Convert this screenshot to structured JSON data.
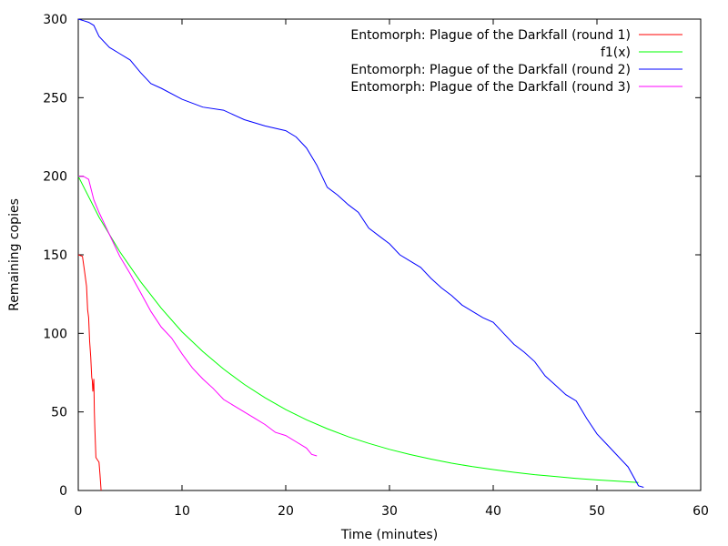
{
  "chart_data": {
    "type": "line",
    "title": "",
    "xlabel": "Time (minutes)",
    "ylabel": "Remaining copies",
    "xlim": [
      0,
      60
    ],
    "ylim": [
      0,
      300
    ],
    "xticks": [
      0,
      10,
      20,
      30,
      40,
      50,
      60
    ],
    "xtick_labels": [
      "0",
      "10",
      "20",
      "30",
      "40",
      "50",
      "60"
    ],
    "yticks": [
      0,
      50,
      100,
      150,
      200,
      250,
      300
    ],
    "ytick_labels": [
      "0",
      "50",
      "100",
      "150",
      "200",
      "250",
      "300"
    ],
    "grid": false,
    "legend_position": "top-right",
    "series": [
      {
        "name": "Entomorph: Plague of the Darkfall (round 1)",
        "color": "#ff0000",
        "x": [
          0,
          0.4,
          0.6,
          0.8,
          0.9,
          1.0,
          1.1,
          1.2,
          1.3,
          1.35,
          1.4,
          1.5,
          1.55,
          1.6,
          1.7,
          1.8,
          2.0,
          2.1,
          2.2
        ],
        "y": [
          150,
          149,
          140,
          130,
          115,
          110,
          95,
          85,
          72,
          70,
          63,
          71,
          50,
          40,
          21,
          20,
          18,
          10,
          0
        ]
      },
      {
        "name": "f1(x)",
        "color": "#00ff00",
        "x": [
          0,
          2,
          4,
          6,
          8,
          10,
          12,
          14,
          16,
          18,
          20,
          22,
          24,
          26,
          28,
          30,
          32,
          34,
          36,
          38,
          40,
          42,
          44,
          46,
          48,
          50,
          52,
          54
        ],
        "y": [
          200,
          174,
          152,
          133,
          116,
          101,
          88.5,
          77.3,
          67.5,
          59,
          51.5,
          45,
          39.3,
          34.3,
          30,
          26.2,
          22.9,
          20,
          17.4,
          15.2,
          13.3,
          11.6,
          10.1,
          8.9,
          7.7,
          6.7,
          5.9,
          5.1
        ]
      },
      {
        "name": "Entomorph: Plague of the Darkfall (round 2)",
        "color": "#0000ff",
        "x": [
          0,
          0.5,
          1,
          1.5,
          2,
          3,
          4,
          5,
          6,
          7,
          8,
          10,
          12,
          14,
          16,
          18,
          20,
          21,
          22,
          23,
          24,
          25,
          26,
          27,
          28,
          29,
          30,
          31,
          32,
          33,
          34,
          35,
          36,
          37,
          38,
          39,
          40,
          41,
          42,
          43,
          44,
          45,
          46,
          47,
          48,
          49,
          50,
          51,
          52,
          53,
          54,
          54.5
        ],
        "y": [
          300,
          299,
          298,
          296,
          289,
          282,
          278,
          274,
          266,
          259,
          256,
          249,
          244,
          242,
          236,
          232,
          229,
          225,
          218,
          207,
          193,
          188,
          182,
          177,
          167,
          162,
          157,
          150,
          146,
          142,
          135,
          129,
          124,
          118,
          114,
          110,
          107,
          100,
          93,
          88,
          82,
          73,
          67,
          61,
          57,
          46,
          36,
          29,
          22,
          15,
          3,
          2
        ]
      },
      {
        "name": "Entomorph: Plague of the Darkfall (round 3)",
        "color": "#ff00ff",
        "x": [
          0,
          0.5,
          1,
          1.5,
          2,
          3,
          4,
          5,
          6,
          7,
          8,
          9,
          10,
          11,
          12,
          13,
          14,
          15,
          16,
          17,
          18,
          19,
          20,
          21,
          22,
          22.5,
          23
        ],
        "y": [
          200,
          200,
          198,
          185,
          177,
          163,
          149,
          138,
          126,
          114,
          104,
          97,
          87,
          78,
          71,
          65,
          58,
          54,
          50,
          46,
          42,
          37,
          35,
          31,
          27,
          23,
          22
        ]
      }
    ]
  }
}
